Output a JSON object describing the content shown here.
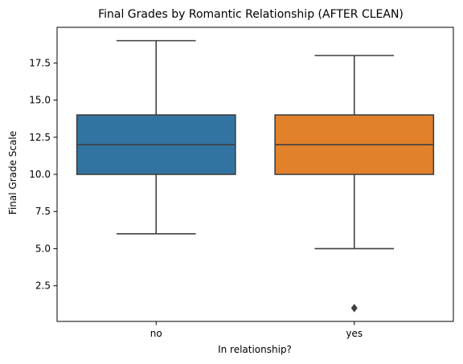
{
  "chart_data": {
    "type": "box",
    "title": "Final Grades by Romantic Relationship (AFTER CLEAN)",
    "xlabel": "In relationship?",
    "ylabel": "Final Grade Scale",
    "ylim": [
      0.1,
      19.9
    ],
    "yticks": [
      2.5,
      5.0,
      7.5,
      10.0,
      12.5,
      15.0,
      17.5
    ],
    "ytick_labels": [
      "2.5",
      "5.0",
      "7.5",
      "10.0",
      "12.5",
      "15.0",
      "17.5"
    ],
    "grid": false,
    "categories": [
      "no",
      "yes"
    ],
    "boxes": [
      {
        "category": "no",
        "whisker_low": 6,
        "q1": 10,
        "median": 12,
        "q3": 14,
        "whisker_high": 19,
        "outliers": [],
        "color": "#3274a1"
      },
      {
        "category": "yes",
        "whisker_low": 5,
        "q1": 10,
        "median": 12,
        "q3": 14,
        "whisker_high": 18,
        "outliers": [
          1
        ],
        "color": "#e1812c"
      }
    ]
  }
}
